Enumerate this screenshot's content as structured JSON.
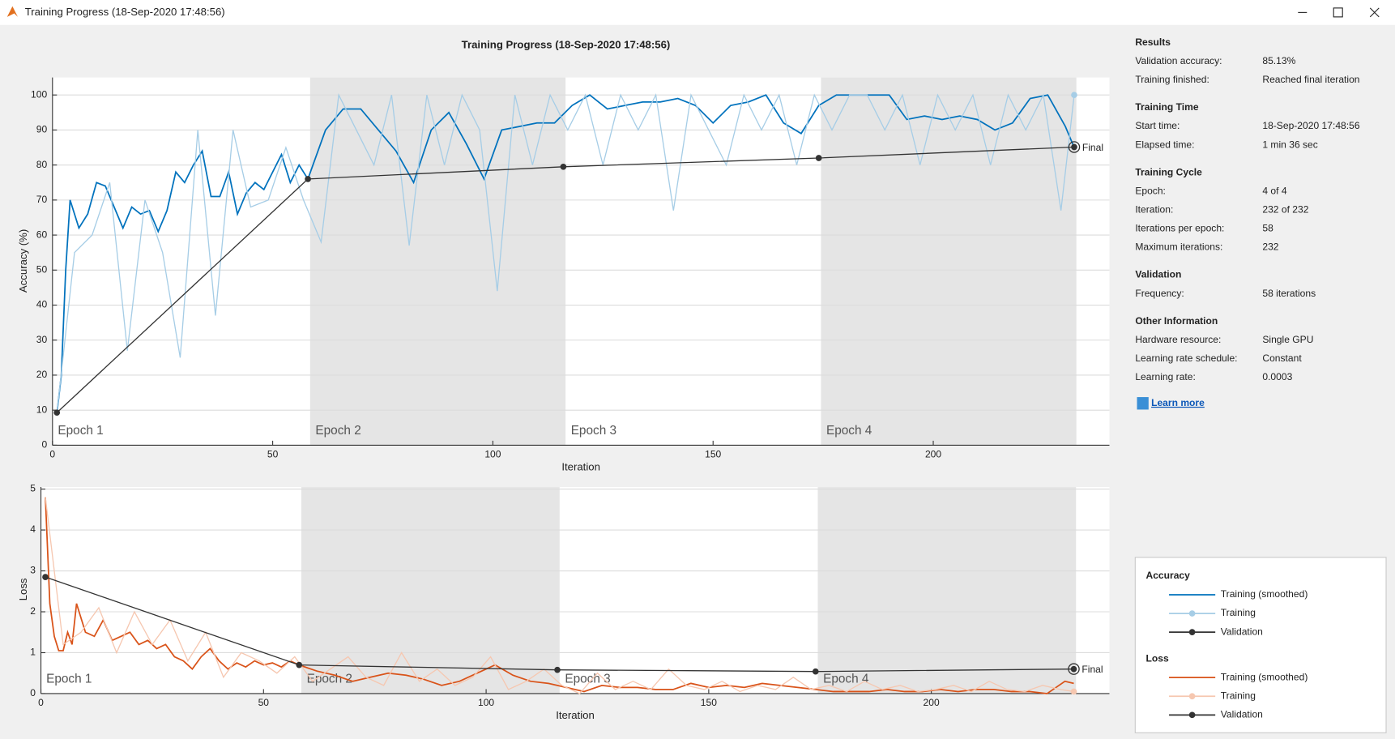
{
  "window": {
    "title": "Training Progress (18-Sep-2020 17:48:56)"
  },
  "chart_data": [
    {
      "type": "line",
      "title": "Training Progress (18-Sep-2020 17:48:56)",
      "xlabel": "Iteration",
      "ylabel": "Accuracy (%)",
      "xlim": [
        0,
        240
      ],
      "ylim": [
        0,
        105
      ],
      "xticks": [
        0,
        50,
        100,
        150,
        200
      ],
      "yticks": [
        0,
        10,
        20,
        30,
        40,
        50,
        60,
        70,
        80,
        90,
        100
      ],
      "grid": true,
      "epoch_edges": [
        0,
        58.5,
        116.5,
        174.5,
        232.5
      ],
      "epoch_labels": [
        "Epoch 1",
        "Epoch 2",
        "Epoch 3",
        "Epoch 4"
      ],
      "final_label": "Final",
      "legend_title": "Accuracy",
      "series": [
        {
          "name": "Training (smoothed)",
          "color": "#0072bd",
          "markers": "none",
          "x": [
            1,
            2,
            3,
            4,
            6,
            8,
            10,
            12,
            14,
            16,
            18,
            20,
            22,
            24,
            26,
            28,
            30,
            32,
            34,
            36,
            38,
            40,
            42,
            44,
            46,
            48,
            50,
            52,
            54,
            56,
            58,
            62,
            66,
            70,
            74,
            78,
            82,
            86,
            90,
            94,
            98,
            102,
            106,
            110,
            114,
            118,
            122,
            126,
            130,
            134,
            138,
            142,
            146,
            150,
            154,
            158,
            162,
            166,
            170,
            174,
            178,
            182,
            186,
            190,
            194,
            198,
            202,
            206,
            210,
            214,
            218,
            222,
            226,
            230,
            232
          ],
          "values": [
            9,
            20,
            50,
            70,
            62,
            66,
            75,
            74,
            68,
            62,
            68,
            66,
            67,
            61,
            67,
            78,
            75,
            80,
            84,
            71,
            71,
            78,
            66,
            72,
            75,
            73,
            78,
            83,
            75,
            80,
            76,
            90,
            96,
            96,
            90,
            84,
            75,
            90,
            95,
            86,
            76,
            90,
            91,
            92,
            92,
            97,
            100,
            96,
            97,
            98,
            98,
            99,
            97,
            92,
            97,
            98,
            100,
            92,
            89,
            97,
            100,
            100,
            100,
            100,
            93,
            94,
            93,
            94,
            93,
            90,
            92,
            99,
            100,
            91,
            85
          ]
        },
        {
          "name": "Training",
          "color": "#a6cde6",
          "markers": "last",
          "x": [
            1,
            5,
            9,
            13,
            17,
            21,
            25,
            29,
            33,
            37,
            41,
            45,
            49,
            53,
            57,
            61,
            65,
            69,
            73,
            77,
            81,
            85,
            89,
            93,
            97,
            101,
            105,
            109,
            113,
            117,
            121,
            125,
            129,
            133,
            137,
            141,
            145,
            149,
            153,
            157,
            161,
            165,
            169,
            173,
            177,
            181,
            185,
            189,
            193,
            197,
            201,
            205,
            209,
            213,
            217,
            221,
            225,
            229,
            232
          ],
          "values": [
            9,
            55,
            60,
            75,
            27,
            70,
            55,
            25,
            90,
            37,
            90,
            68,
            70,
            85,
            70,
            58,
            100,
            90,
            80,
            100,
            57,
            100,
            80,
            100,
            90,
            44,
            100,
            80,
            100,
            90,
            100,
            80,
            100,
            90,
            100,
            67,
            100,
            90,
            80,
            100,
            90,
            100,
            80,
            100,
            90,
            100,
            100,
            90,
            100,
            80,
            100,
            90,
            100,
            80,
            100,
            90,
            100,
            67,
            100
          ]
        },
        {
          "name": "Validation",
          "color": "#333333",
          "markers": "all",
          "x": [
            1,
            58,
            116,
            174,
            232
          ],
          "values": [
            9.3,
            76,
            79.5,
            82,
            85.13
          ]
        }
      ]
    },
    {
      "type": "line",
      "xlabel": "Iteration",
      "ylabel": "Loss",
      "xlim": [
        0,
        240
      ],
      "ylim": [
        0,
        5.05
      ],
      "xticks": [
        0,
        50,
        100,
        150,
        200
      ],
      "yticks": [
        0,
        1,
        2,
        3,
        4,
        5
      ],
      "grid": true,
      "epoch_edges": [
        0,
        58.5,
        116.5,
        174.5,
        232.5
      ],
      "epoch_labels": [
        "Epoch 1",
        "Epoch 2",
        "Epoch 3",
        "Epoch 4"
      ],
      "final_label": "Final",
      "legend_title": "Loss",
      "series": [
        {
          "name": "Training (smoothed)",
          "color": "#d95319",
          "markers": "none",
          "x": [
            1,
            2,
            3,
            4,
            5,
            6,
            7,
            8,
            10,
            12,
            14,
            16,
            18,
            20,
            22,
            24,
            26,
            28,
            30,
            32,
            34,
            36,
            38,
            40,
            42,
            44,
            46,
            48,
            50,
            52,
            54,
            56,
            58,
            62,
            66,
            70,
            74,
            78,
            82,
            86,
            90,
            94,
            98,
            102,
            106,
            110,
            114,
            118,
            122,
            126,
            130,
            134,
            138,
            142,
            146,
            150,
            154,
            158,
            162,
            166,
            170,
            174,
            178,
            182,
            186,
            190,
            194,
            198,
            202,
            206,
            210,
            214,
            218,
            222,
            226,
            230,
            232
          ],
          "values": [
            4.8,
            2.2,
            1.4,
            1.05,
            1.05,
            1.5,
            1.2,
            2.2,
            1.5,
            1.4,
            1.8,
            1.3,
            1.4,
            1.5,
            1.2,
            1.3,
            1.1,
            1.2,
            0.9,
            0.8,
            0.6,
            0.9,
            1.1,
            0.8,
            0.6,
            0.75,
            0.65,
            0.8,
            0.7,
            0.75,
            0.65,
            0.8,
            0.7,
            0.55,
            0.45,
            0.3,
            0.4,
            0.5,
            0.45,
            0.35,
            0.2,
            0.3,
            0.5,
            0.7,
            0.45,
            0.3,
            0.25,
            0.15,
            0.05,
            0.2,
            0.15,
            0.15,
            0.1,
            0.1,
            0.25,
            0.15,
            0.2,
            0.15,
            0.25,
            0.2,
            0.15,
            0.1,
            0.05,
            0.05,
            0.05,
            0.1,
            0.05,
            0.05,
            0.1,
            0.05,
            0.1,
            0.1,
            0.05,
            0.05,
            0.0,
            0.3,
            0.25
          ]
        },
        {
          "name": "Training",
          "color": "#f6c7b0",
          "markers": "last",
          "x": [
            1,
            5,
            9,
            13,
            17,
            21,
            25,
            29,
            33,
            37,
            41,
            45,
            49,
            53,
            57,
            61,
            65,
            69,
            73,
            77,
            81,
            85,
            89,
            93,
            97,
            101,
            105,
            109,
            113,
            117,
            121,
            125,
            129,
            133,
            137,
            141,
            145,
            149,
            153,
            157,
            161,
            165,
            169,
            173,
            177,
            181,
            185,
            189,
            193,
            197,
            201,
            205,
            209,
            213,
            217,
            221,
            225,
            229,
            232
          ],
          "values": [
            4.8,
            1.2,
            1.5,
            2.1,
            1.0,
            2.0,
            1.2,
            1.8,
            0.8,
            1.5,
            0.4,
            1.0,
            0.8,
            0.5,
            0.9,
            0.3,
            0.6,
            0.9,
            0.4,
            0.2,
            1.0,
            0.3,
            0.6,
            0.2,
            0.4,
            0.9,
            0.1,
            0.3,
            0.6,
            0.2,
            0.0,
            0.5,
            0.1,
            0.3,
            0.1,
            0.6,
            0.2,
            0.1,
            0.3,
            0.05,
            0.2,
            0.1,
            0.4,
            0.1,
            0.2,
            0.05,
            0.3,
            0.1,
            0.2,
            0.05,
            0.1,
            0.2,
            0.05,
            0.3,
            0.1,
            0.05,
            0.2,
            0.1,
            0.05
          ]
        },
        {
          "name": "Validation",
          "color": "#333333",
          "markers": "all",
          "x": [
            1,
            58,
            116,
            174,
            232
          ],
          "values": [
            2.85,
            0.7,
            0.58,
            0.54,
            0.6
          ]
        }
      ]
    }
  ],
  "results": [
    {
      "heading": "Results",
      "rows": [
        {
          "label": "Validation accuracy:",
          "value": "85.13%"
        },
        {
          "label": "Training finished:",
          "value": "Reached final iteration"
        }
      ]
    },
    {
      "heading": "Training Time",
      "rows": [
        {
          "label": "Start time:",
          "value": "18-Sep-2020 17:48:56"
        },
        {
          "label": "Elapsed time:",
          "value": "1 min 36 sec"
        }
      ]
    },
    {
      "heading": "Training Cycle",
      "rows": [
        {
          "label": "Epoch:",
          "value": "4 of 4"
        },
        {
          "label": "Iteration:",
          "value": "232 of 232"
        },
        {
          "label": "Iterations per epoch:",
          "value": "58"
        },
        {
          "label": "Maximum iterations:",
          "value": "232"
        }
      ]
    },
    {
      "heading": "Validation",
      "rows": [
        {
          "label": "Frequency:",
          "value": "58 iterations"
        }
      ]
    },
    {
      "heading": "Other Information",
      "rows": [
        {
          "label": "Hardware resource:",
          "value": "Single GPU"
        },
        {
          "label": "Learning rate schedule:",
          "value": "Constant"
        },
        {
          "label": "Learning rate:",
          "value": "0.0003"
        }
      ]
    }
  ],
  "learn_more": "Learn more"
}
